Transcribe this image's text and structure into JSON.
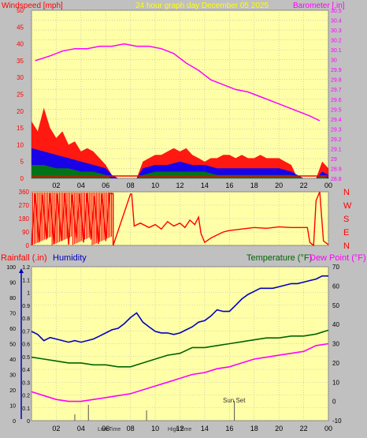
{
  "header": {
    "left_title": "Windspeed [mph]",
    "center_title": "24 hour graph day   December 05 2025",
    "right_title": "Barometer [.in]"
  },
  "x_ticks": [
    "02",
    "04",
    "06",
    "08",
    "10",
    "12",
    "14",
    "16",
    "18",
    "20",
    "22",
    "00"
  ],
  "colors": {
    "background": "#c0c0c0",
    "plot_bg": "#ffffa8",
    "grid": "#b4b4b4",
    "wind": "#ff0000",
    "gust_fill": "#0000ff",
    "calm_fill": "#008000",
    "barometer": "#ff00ff",
    "direction": "#ff0000",
    "humidity": "#0000c0",
    "temperature": "#006400",
    "dew_point": "#ff00ff",
    "rain_label": "#ff0000",
    "markers": "#555555"
  },
  "direction_panel": {
    "y_ticks": [
      "360",
      "270",
      "180",
      "90",
      "0"
    ],
    "compass": [
      "N",
      "W",
      "S",
      "E",
      "N"
    ]
  },
  "lower_panel": {
    "rain_label": "Rainfall (.in)",
    "humidity_label": "Humidity",
    "temp_label": "Temperature (°F)",
    "dew_label": "Dew Point (°F)",
    "left_outer_ticks": [
      "100",
      "90",
      "80",
      "70",
      "60",
      "50",
      "40",
      "30",
      "20",
      "10",
      "0"
    ],
    "left_inner_ticks": [
      "1.2",
      "1.1",
      "1",
      "0.9",
      "0.8",
      "0.7",
      "0.6",
      "0.5",
      "0.4",
      "0.3",
      "0.2",
      "0.1",
      "0"
    ],
    "right_ticks": [
      "70",
      "60",
      "50",
      "40",
      "30",
      "20",
      "10",
      "0",
      "-10"
    ],
    "markers": {
      "low_label": "Low",
      "low_time_label": "Time",
      "high_label": "High",
      "high_time_label": "Time",
      "sunset_label": "Sun Set"
    }
  },
  "chart_data": [
    {
      "type": "line",
      "title": "24 hour graph day   December 05 2025",
      "x_unit": "hour of day",
      "x_range": [
        0,
        24
      ],
      "y_left": {
        "label": "Windspeed [mph]",
        "range": [
          0,
          50
        ],
        "ticks": [
          "50",
          "45",
          "40",
          "35",
          "30",
          "25",
          "20",
          "15",
          "10",
          "5",
          "0"
        ]
      },
      "y_right": {
        "label": "Barometer [.in]",
        "range": [
          29.8,
          30.5
        ],
        "ticks": [
          "30.5",
          "30.4",
          "30.3",
          "30.2",
          "30.1",
          "30",
          "29.9",
          "29.8",
          "29.7",
          "29.6",
          "29.5",
          "29.4",
          "29.3",
          "29.2",
          "29.1",
          "29",
          "28.9",
          "28.8"
        ]
      },
      "series": [
        {
          "name": "Barometer [.in]",
          "axis": "right",
          "x": [
            0.3,
            1.5,
            2.5,
            3.5,
            4.5,
            5.5,
            6.5,
            7.5,
            8.5,
            9.5,
            10.5,
            11.5,
            12.5,
            13.5,
            14.5,
            15.5,
            16.5,
            17.5,
            18.5,
            19.5,
            20.5,
            21.5,
            22.5,
            23.3
          ],
          "y": [
            30.29,
            30.31,
            30.33,
            30.34,
            30.34,
            30.35,
            30.35,
            30.36,
            30.35,
            30.35,
            30.34,
            30.32,
            30.28,
            30.25,
            30.21,
            30.19,
            30.17,
            30.16,
            30.14,
            30.12,
            30.1,
            30.08,
            30.06,
            30.04
          ]
        },
        {
          "name": "Windspeed [mph]",
          "axis": "left",
          "x": [
            0,
            0.5,
            1,
            1.5,
            2,
            2.5,
            3,
            3.5,
            4,
            4.5,
            5,
            5.5,
            6,
            6.5,
            7,
            7.5,
            8,
            8.5,
            9,
            9.5,
            10,
            10.5,
            11,
            11.5,
            12,
            12.5,
            13,
            13.5,
            14,
            14.5,
            15,
            15.5,
            16,
            16.5,
            17,
            17.5,
            18,
            18.5,
            19,
            19.5,
            20,
            20.5,
            21,
            21.5,
            22,
            22.5,
            23,
            23.5,
            24
          ],
          "y": [
            17,
            14,
            21,
            15,
            12,
            14,
            10,
            11,
            8,
            9,
            8,
            6,
            4,
            1,
            0,
            0,
            0,
            0,
            5,
            6,
            7,
            7,
            8,
            9,
            8,
            9,
            7,
            6,
            5,
            6,
            6,
            7,
            7,
            6,
            7,
            6,
            6,
            7,
            6,
            6,
            6,
            5,
            4,
            0,
            0,
            0,
            0,
            5,
            3
          ]
        },
        {
          "name": "Gust",
          "axis": "left",
          "x": [
            0,
            1,
            2,
            3,
            4,
            5,
            6,
            6.5,
            7,
            8,
            8.5,
            9,
            10,
            11,
            12,
            13,
            14,
            15,
            16,
            17,
            18,
            19,
            20,
            21,
            22,
            23,
            23.5,
            24
          ],
          "y": [
            9,
            8,
            7,
            6,
            5,
            4,
            3,
            1,
            0,
            0,
            0,
            3,
            4,
            4,
            5,
            4,
            4,
            3,
            3,
            3,
            3,
            3,
            3,
            2,
            0,
            0,
            2,
            1
          ]
        },
        {
          "name": "Calm",
          "axis": "left",
          "x": [
            0,
            1,
            2,
            3,
            4,
            5,
            6,
            6.5,
            7,
            8,
            8.5,
            9,
            10,
            11,
            12,
            13,
            14,
            15,
            16,
            17,
            18,
            19,
            20,
            21,
            22,
            23,
            23.5,
            24
          ],
          "y": [
            4,
            4,
            3,
            3,
            2,
            2,
            1,
            0,
            0,
            0,
            0,
            1,
            2,
            2,
            2,
            2,
            2,
            1,
            1,
            1,
            1,
            1,
            1,
            1,
            0,
            0,
            1,
            0
          ]
        }
      ]
    },
    {
      "type": "line",
      "title": "",
      "x_unit": "hour of day",
      "x_range": [
        0,
        24
      ],
      "y_left": {
        "label": "",
        "range": [
          0,
          360
        ],
        "ticks": [
          "360",
          "270",
          "180",
          "90",
          "0"
        ]
      },
      "series": [
        {
          "name": "",
          "axis": "left",
          "x": [
            0,
            0.3,
            0.6,
            0.9,
            1.2,
            1.5,
            1.8,
            2.1,
            2.4,
            2.7,
            3.0,
            3.3,
            3.6,
            3.9,
            4.2,
            4.5,
            4.8,
            5.1,
            5.4,
            5.7,
            6.0,
            6.3,
            6.6,
            6.6,
            8.0,
            8.1,
            8.3,
            8.8,
            9.5,
            10.0,
            10.5,
            11.0,
            11.5,
            12.0,
            12.4,
            12.8,
            13.2,
            13.5,
            13.7,
            14.0,
            14.5,
            15.0,
            15.5,
            16.0,
            16.5,
            17.0,
            18.0,
            19.0,
            20.0,
            21.0,
            22.0,
            22.3,
            22.5,
            22.8,
            23.0,
            23.3,
            23.6,
            24.0
          ],
          "y": [
            0,
            345,
            20,
            340,
            40,
            350,
            10,
            345,
            30,
            350,
            5,
            340,
            50,
            345,
            20,
            350,
            40,
            330,
            10,
            345,
            30,
            350,
            345,
            0,
            345,
            345,
            130,
            150,
            120,
            140,
            110,
            160,
            130,
            150,
            120,
            170,
            140,
            190,
            80,
            20,
            50,
            70,
            90,
            100,
            105,
            110,
            120,
            115,
            125,
            120,
            120,
            120,
            20,
            0,
            300,
            360,
            30,
            5
          ]
        }
      ]
    },
    {
      "type": "line",
      "title": "",
      "x_unit": "hour of day",
      "x_range": [
        0,
        24
      ],
      "y_left": {
        "label": "Humidity",
        "range": [
          0,
          100
        ],
        "ticks": [
          "100",
          "90",
          "80",
          "70",
          "60",
          "50",
          "40",
          "30",
          "20",
          "10",
          "0"
        ]
      },
      "y_left_inner": {
        "label": "Rainfall (.in)",
        "range": [
          0,
          1.2
        ],
        "ticks": [
          "1.2",
          "1.1",
          "1",
          "0.9",
          "0.8",
          "0.7",
          "0.6",
          "0.5",
          "0.4",
          "0.3",
          "0.2",
          "0.1",
          "0"
        ]
      },
      "y_right": {
        "label": "Temperature (°F)  Dew Point (°F)",
        "range": [
          -10,
          70
        ],
        "ticks": [
          "70",
          "60",
          "50",
          "40",
          "30",
          "20",
          "10",
          "0",
          "-10"
        ]
      },
      "series": [
        {
          "name": "Humidity",
          "axis": "left",
          "x": [
            0,
            0.5,
            1,
            1.5,
            2,
            2.5,
            3,
            3.5,
            4,
            4.5,
            5,
            5.5,
            6,
            6.5,
            7,
            7.5,
            8,
            8.5,
            9,
            9.5,
            10,
            10.5,
            11,
            11.5,
            12,
            12.5,
            13,
            13.5,
            14,
            14.5,
            15,
            15.5,
            16,
            16.5,
            17,
            17.5,
            18,
            18.5,
            19,
            19.5,
            20,
            20.5,
            21,
            21.5,
            22,
            22.5,
            23,
            23.5,
            24
          ],
          "y": [
            58,
            56,
            52,
            54,
            53,
            52,
            51,
            52,
            51,
            52,
            53,
            55,
            57,
            59,
            60,
            63,
            67,
            70,
            64,
            61,
            58,
            57,
            57,
            56,
            57,
            59,
            61,
            64,
            65,
            68,
            72,
            71,
            71,
            75,
            79,
            82,
            84,
            86,
            86,
            86,
            87,
            88,
            89,
            89,
            90,
            91,
            92,
            94,
            94
          ]
        },
        {
          "name": "Temperature (°F)",
          "axis": "right",
          "x": [
            0,
            1,
            2,
            3,
            4,
            5,
            6,
            7,
            8,
            9,
            10,
            11,
            12,
            13,
            14,
            15,
            16,
            17,
            18,
            19,
            20,
            21,
            22,
            23,
            24
          ],
          "y": [
            23,
            22,
            21,
            20,
            20,
            19,
            19,
            18,
            18,
            20,
            22,
            24,
            25,
            28,
            28,
            29,
            30,
            31,
            32,
            33,
            33,
            34,
            34,
            35,
            37
          ]
        },
        {
          "name": "Dew Point (°F)",
          "axis": "right",
          "x": [
            0,
            1,
            2,
            3,
            4,
            5,
            6,
            7,
            8,
            9,
            10,
            11,
            12,
            13,
            14,
            15,
            16,
            17,
            18,
            19,
            20,
            21,
            22,
            23,
            24
          ],
          "y": [
            5,
            3,
            1,
            0,
            0,
            1,
            2,
            3,
            4,
            6,
            8,
            10,
            12,
            14,
            15,
            17,
            18,
            20,
            22,
            23,
            24,
            25,
            26,
            29,
            30
          ]
        }
      ],
      "markers": [
        {
          "label": "Low Time",
          "x": 3.5
        },
        {
          "label": "",
          "x": 4.6
        },
        {
          "label": "High Time",
          "x": 9.3
        },
        {
          "label": "Sun Set",
          "x": 16.4
        }
      ]
    }
  ]
}
